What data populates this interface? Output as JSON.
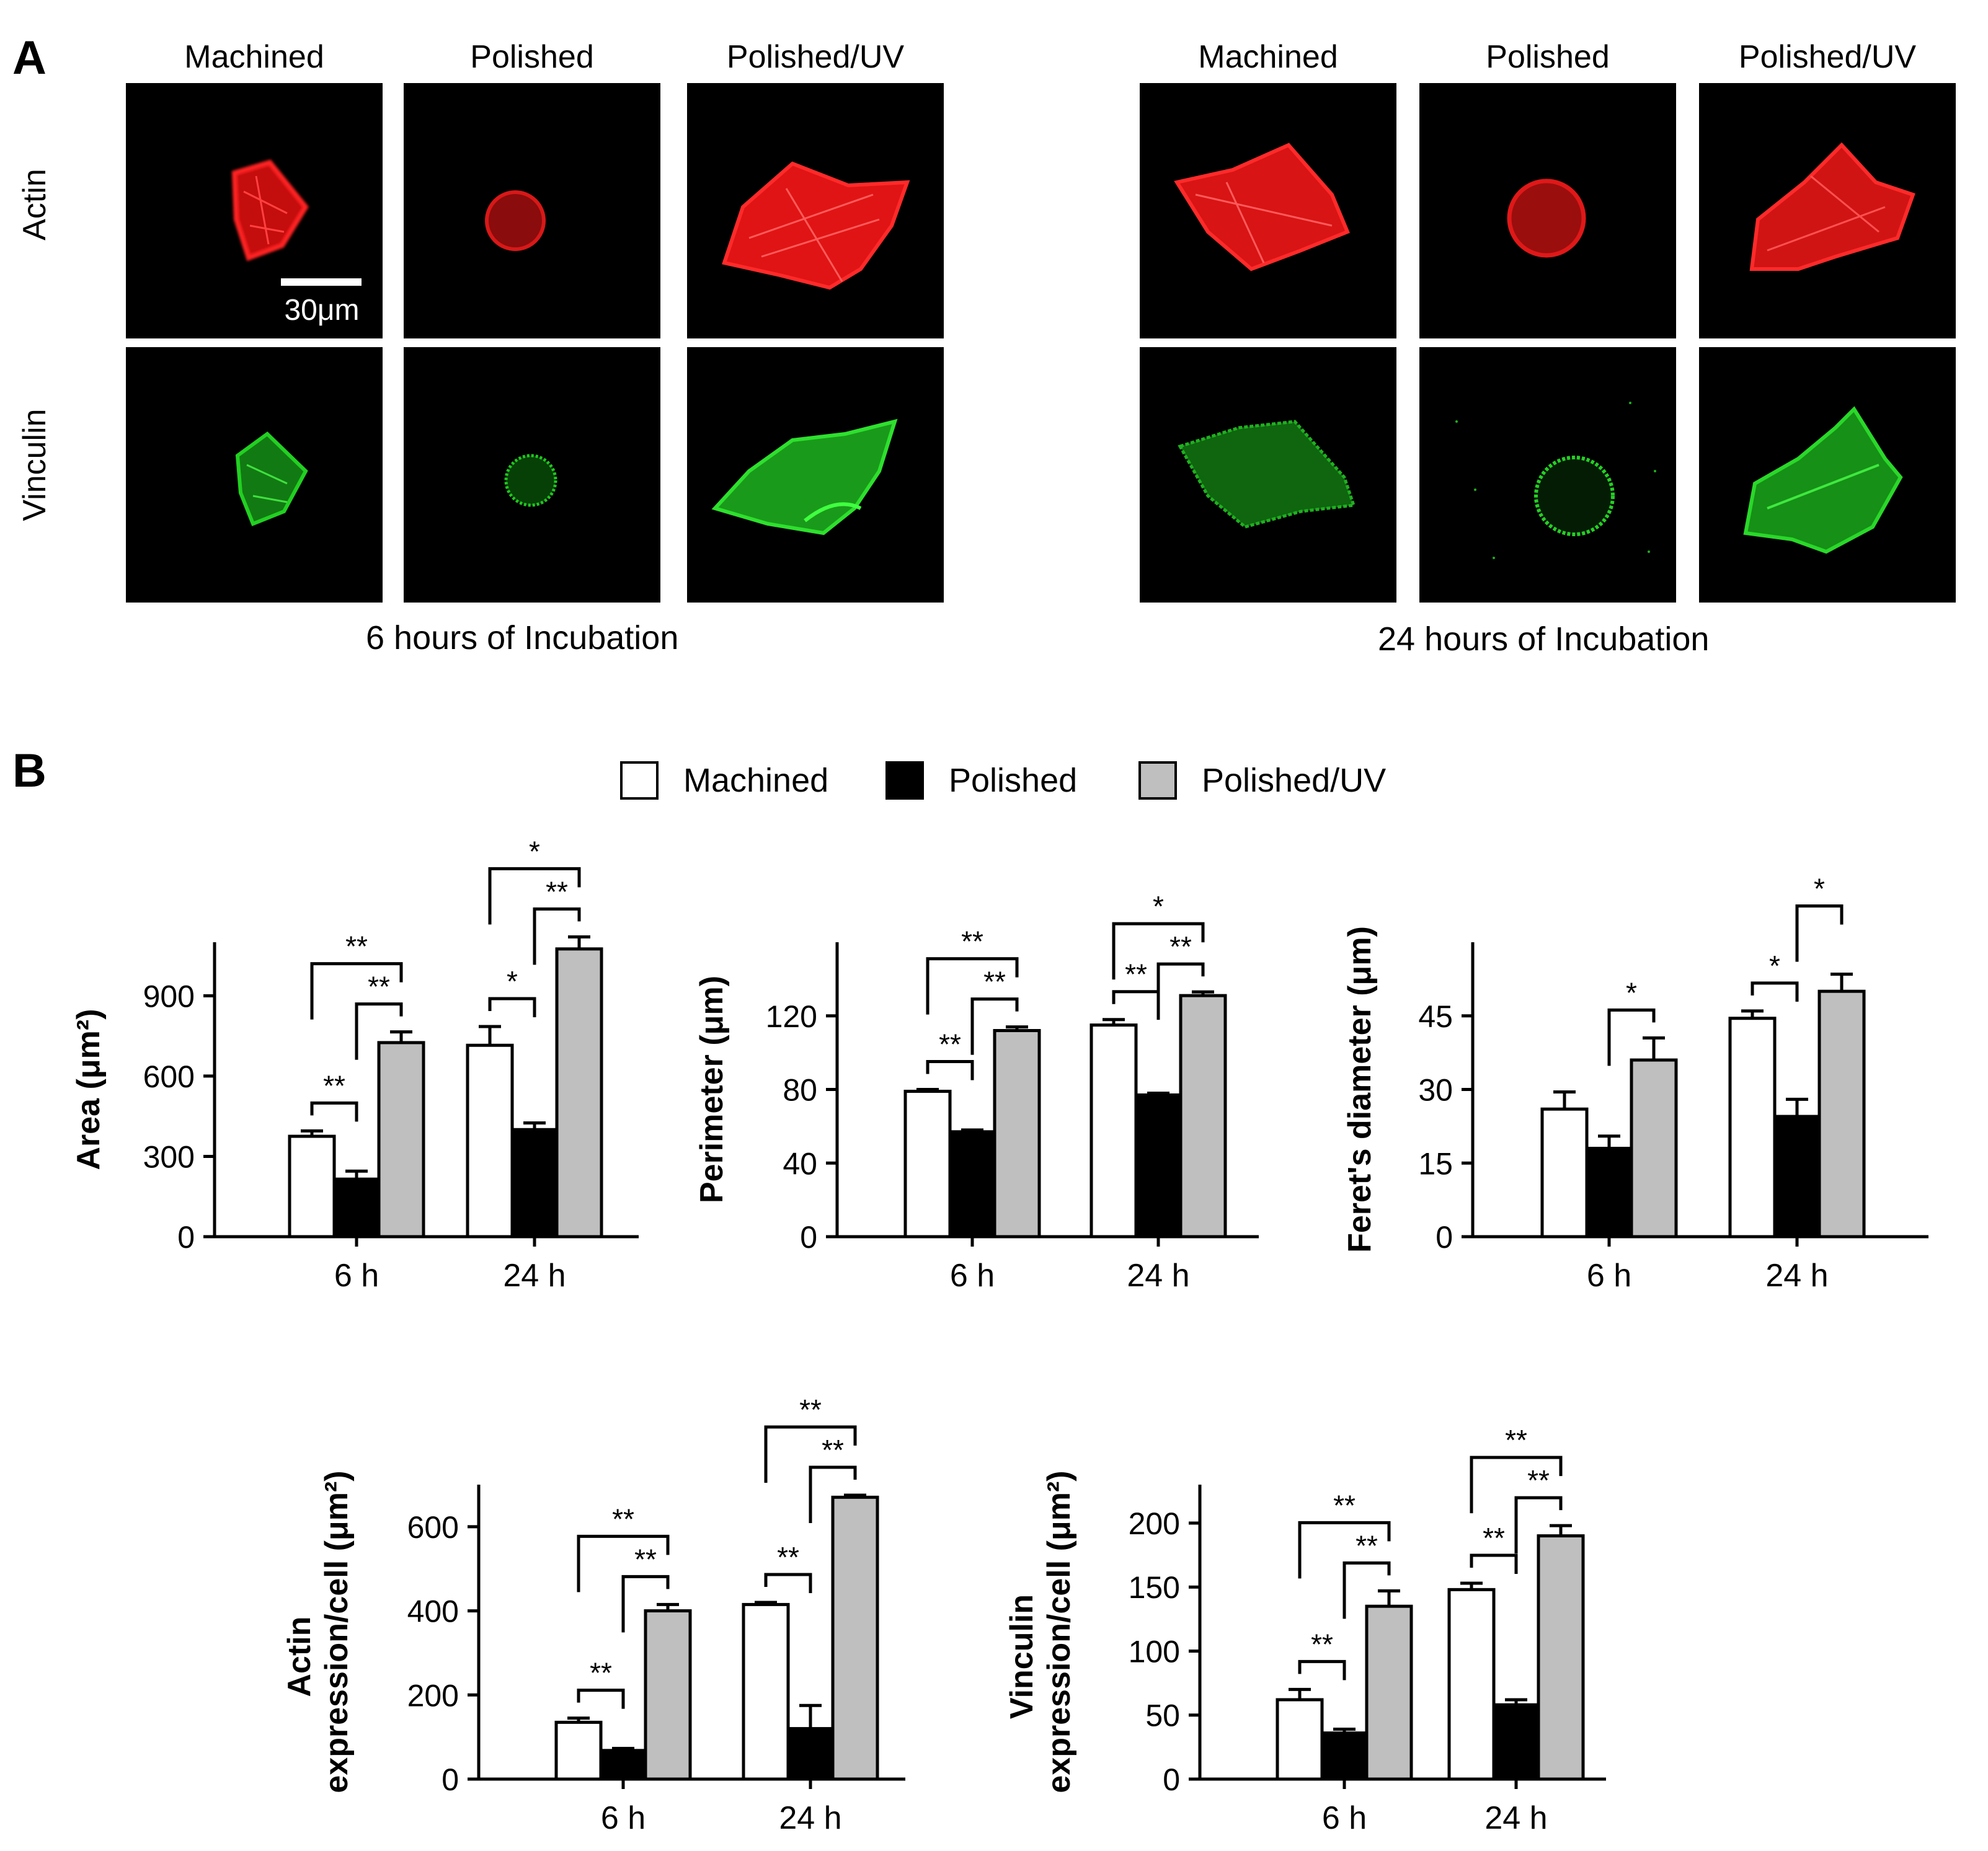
{
  "panel_a": {
    "letter": "A",
    "group_6h": {
      "caption": "6 hours of Incubation",
      "columns": [
        "Machined",
        "Polished",
        "Polished/UV"
      ]
    },
    "group_24h": {
      "caption": "24 hours of Incubation",
      "columns": [
        "Machined",
        "Polished",
        "Polished/UV"
      ]
    },
    "rows": [
      "Actin",
      "Vinculin"
    ],
    "scale_bar": "30μm",
    "colors": {
      "actin": "#ff1a1a",
      "vinculin": "#1ed21e",
      "background": "#000000"
    }
  },
  "panel_b": {
    "letter": "B",
    "legend": [
      "Machined",
      "Polished",
      "Polished/UV"
    ],
    "colors": {
      "Machined": "#ffffff",
      "Polished": "#000000",
      "Polished/UV": "#bfbfbf"
    }
  },
  "chart_data": [
    {
      "type": "bar",
      "ylabel": "Area (μm²)",
      "categories": [
        "6 h",
        "24 h"
      ],
      "ylim": [
        0,
        1100
      ],
      "yticks": [
        0,
        300,
        600,
        900
      ],
      "series": [
        {
          "name": "Machined",
          "values": [
            375,
            715
          ],
          "errors": [
            20,
            70
          ]
        },
        {
          "name": "Polished",
          "values": [
            215,
            400
          ],
          "errors": [
            30,
            25
          ]
        },
        {
          "name": "Polished/UV",
          "values": [
            725,
            1075
          ],
          "errors": [
            40,
            45
          ]
        }
      ],
      "significance": [
        {
          "group": 0,
          "from": 0,
          "to": 1,
          "label": "**",
          "level": 1
        },
        {
          "group": 0,
          "from": 1,
          "to": 2,
          "label": "**",
          "level": 1
        },
        {
          "group": 0,
          "from": 0,
          "to": 2,
          "label": "**",
          "level": 2
        },
        {
          "group": 1,
          "from": 0,
          "to": 1,
          "label": "*",
          "level": 1
        },
        {
          "group": 1,
          "from": 1,
          "to": 2,
          "label": "**",
          "level": 1
        },
        {
          "group": 1,
          "from": 0,
          "to": 2,
          "label": "*",
          "level": 2
        }
      ]
    },
    {
      "type": "bar",
      "ylabel": "Perimeter (μm)",
      "categories": [
        "6 h",
        "24 h"
      ],
      "ylim": [
        0,
        160
      ],
      "yticks": [
        0,
        40,
        80,
        120
      ],
      "series": [
        {
          "name": "Machined",
          "values": [
            79,
            115
          ],
          "errors": [
            1,
            3
          ]
        },
        {
          "name": "Polished",
          "values": [
            57,
            77
          ],
          "errors": [
            1,
            1
          ]
        },
        {
          "name": "Polished/UV",
          "values": [
            112,
            131
          ],
          "errors": [
            2,
            2
          ]
        }
      ],
      "significance": [
        {
          "group": 0,
          "from": 0,
          "to": 1,
          "label": "**",
          "level": 1
        },
        {
          "group": 0,
          "from": 1,
          "to": 2,
          "label": "**",
          "level": 1
        },
        {
          "group": 0,
          "from": 0,
          "to": 2,
          "label": "**",
          "level": 2
        },
        {
          "group": 1,
          "from": 0,
          "to": 1,
          "label": "**",
          "level": 1
        },
        {
          "group": 1,
          "from": 1,
          "to": 2,
          "label": "**",
          "level": 1
        },
        {
          "group": 1,
          "from": 0,
          "to": 2,
          "label": "*",
          "level": 2
        }
      ]
    },
    {
      "type": "bar",
      "ylabel": "Feret's diameter (μm)",
      "categories": [
        "6 h",
        "24 h"
      ],
      "ylim": [
        0,
        60
      ],
      "yticks": [
        0,
        15,
        30,
        45
      ],
      "series": [
        {
          "name": "Machined",
          "values": [
            26,
            44.5
          ],
          "errors": [
            3.5,
            1.5
          ]
        },
        {
          "name": "Polished",
          "values": [
            18,
            24.5
          ],
          "errors": [
            2.5,
            3.5
          ]
        },
        {
          "name": "Polished/UV",
          "values": [
            36,
            50
          ],
          "errors": [
            4.5,
            3.5
          ]
        }
      ],
      "significance": [
        {
          "group": 0,
          "from": 1,
          "to": 2,
          "label": "*",
          "level": 1
        },
        {
          "group": 1,
          "from": 0,
          "to": 1,
          "label": "*",
          "level": 1
        },
        {
          "group": 1,
          "from": 1,
          "to": 2,
          "label": "*",
          "level": 2
        }
      ]
    },
    {
      "type": "bar",
      "ylabel_lines": [
        "Actin",
        "expression/cell (μm²)"
      ],
      "categories": [
        "6 h",
        "24 h"
      ],
      "ylim": [
        0,
        700
      ],
      "yticks": [
        0,
        200,
        400,
        600
      ],
      "series": [
        {
          "name": "Machined",
          "values": [
            135,
            415
          ],
          "errors": [
            10,
            5
          ]
        },
        {
          "name": "Polished",
          "values": [
            68,
            120
          ],
          "errors": [
            5,
            55
          ]
        },
        {
          "name": "Polished/UV",
          "values": [
            400,
            670
          ],
          "errors": [
            15,
            5
          ]
        }
      ],
      "significance": [
        {
          "group": 0,
          "from": 0,
          "to": 1,
          "label": "**",
          "level": 1
        },
        {
          "group": 0,
          "from": 1,
          "to": 2,
          "label": "**",
          "level": 1
        },
        {
          "group": 0,
          "from": 0,
          "to": 2,
          "label": "**",
          "level": 2
        },
        {
          "group": 1,
          "from": 0,
          "to": 1,
          "label": "**",
          "level": 1
        },
        {
          "group": 1,
          "from": 1,
          "to": 2,
          "label": "**",
          "level": 1
        },
        {
          "group": 1,
          "from": 0,
          "to": 2,
          "label": "**",
          "level": 2
        }
      ]
    },
    {
      "type": "bar",
      "ylabel_lines": [
        "Vinculin",
        "expression/cell (μm²)"
      ],
      "categories": [
        "6 h",
        "24 h"
      ],
      "ylim": [
        0,
        230
      ],
      "yticks": [
        0,
        50,
        100,
        150,
        200
      ],
      "series": [
        {
          "name": "Machined",
          "values": [
            62,
            148
          ],
          "errors": [
            8,
            5
          ]
        },
        {
          "name": "Polished",
          "values": [
            36,
            58
          ],
          "errors": [
            3,
            4
          ]
        },
        {
          "name": "Polished/UV",
          "values": [
            135,
            190
          ],
          "errors": [
            12,
            8
          ]
        }
      ],
      "significance": [
        {
          "group": 0,
          "from": 0,
          "to": 1,
          "label": "**",
          "level": 1
        },
        {
          "group": 0,
          "from": 1,
          "to": 2,
          "label": "**",
          "level": 1
        },
        {
          "group": 0,
          "from": 0,
          "to": 2,
          "label": "**",
          "level": 2
        },
        {
          "group": 1,
          "from": 0,
          "to": 1,
          "label": "**",
          "level": 1
        },
        {
          "group": 1,
          "from": 1,
          "to": 2,
          "label": "**",
          "level": 1
        },
        {
          "group": 1,
          "from": 0,
          "to": 2,
          "label": "**",
          "level": 2
        }
      ]
    }
  ]
}
